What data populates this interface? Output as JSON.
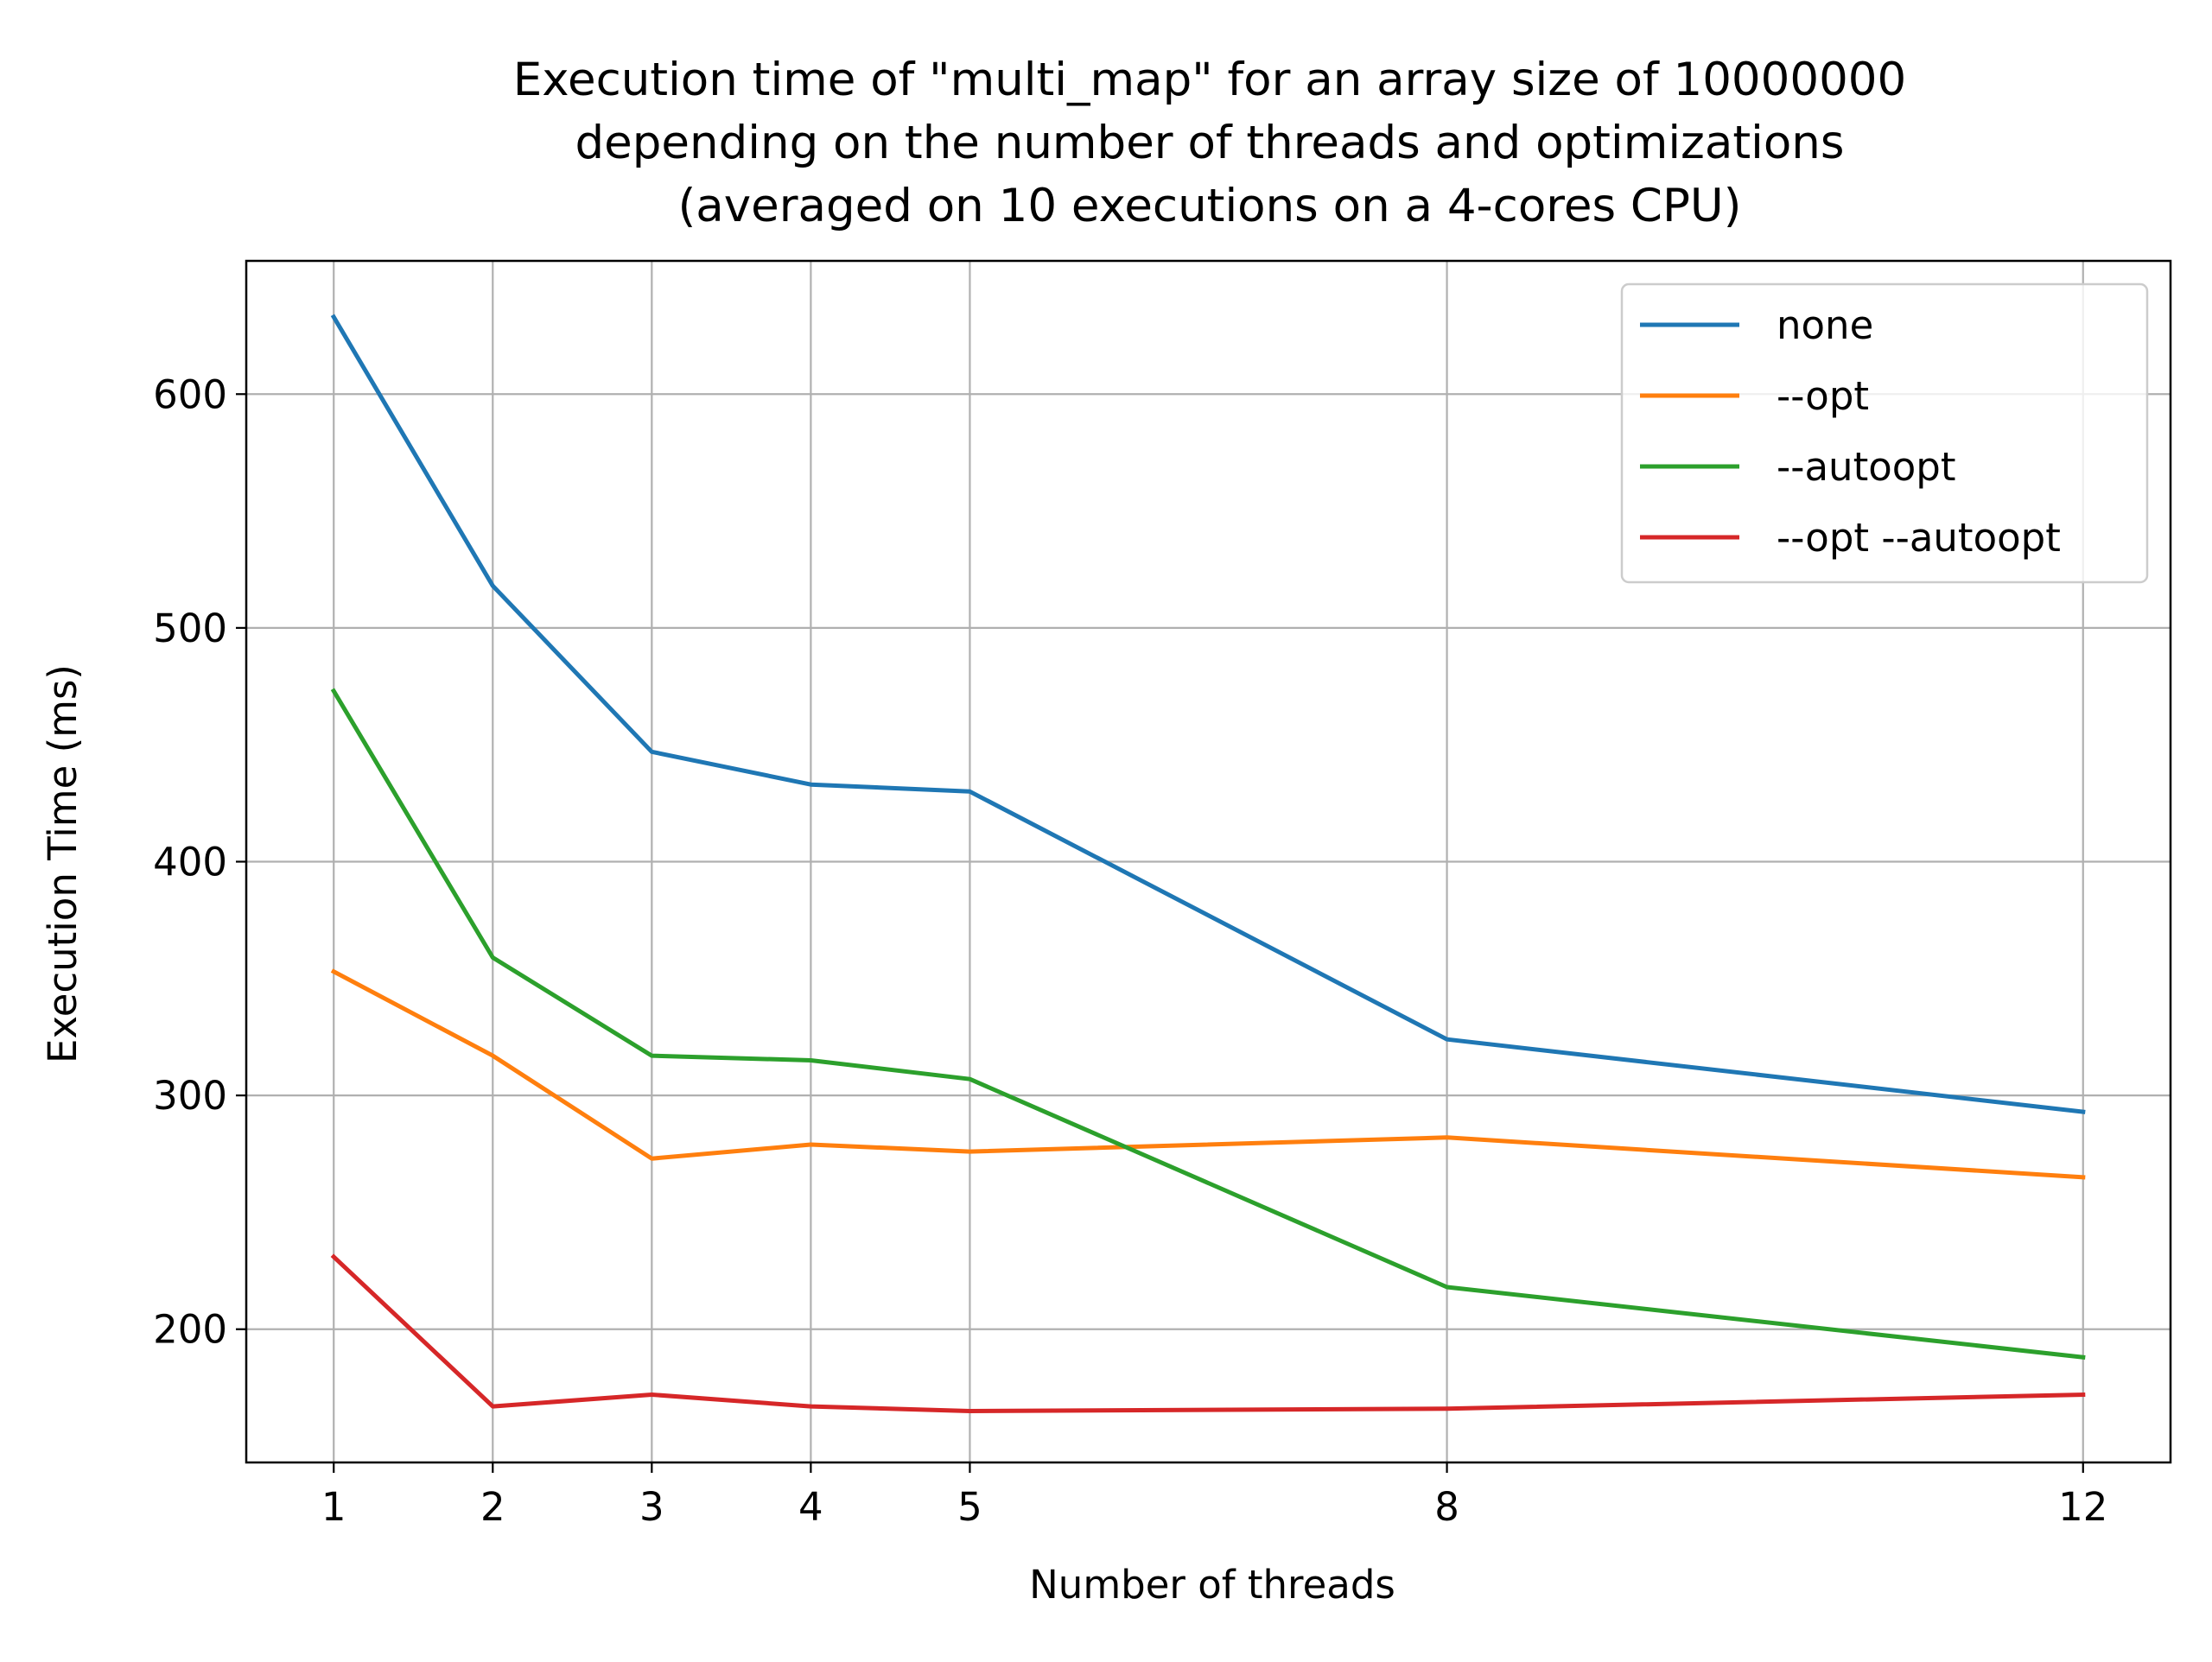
{
  "chart_data": {
    "type": "line",
    "title": [
      "Execution time of \"multi_map\" for an array size of 10000000",
      "depending on the number of threads and optimizations",
      "(averaged on 10 executions on a 4-cores CPU)"
    ],
    "xlabel": "Number of threads",
    "ylabel": "Execution Time (ms)",
    "x": [
      1,
      2,
      3,
      4,
      5,
      8,
      12
    ],
    "xticks": [
      "1",
      "2",
      "3",
      "4",
      "5",
      "8",
      "12"
    ],
    "yticks": [
      200,
      300,
      400,
      500,
      600
    ],
    "xlim": [
      0.45,
      12.55
    ],
    "ylim": [
      143,
      657
    ],
    "grid": true,
    "legend_position": "top-right",
    "series": [
      {
        "name": "none",
        "color": "#1f77b4",
        "values": [
          633,
          518,
          447,
          433,
          430,
          324,
          293
        ]
      },
      {
        "name": "--opt",
        "color": "#ff7f0e",
        "values": [
          353,
          317,
          273,
          279,
          276,
          282,
          265
        ]
      },
      {
        "name": "--autoopt",
        "color": "#2ca02c",
        "values": [
          473,
          359,
          317,
          315,
          307,
          218,
          188
        ]
      },
      {
        "name": "--opt --autoopt",
        "color": "#d62728",
        "values": [
          231,
          167,
          172,
          167,
          165,
          166,
          172
        ]
      }
    ]
  }
}
